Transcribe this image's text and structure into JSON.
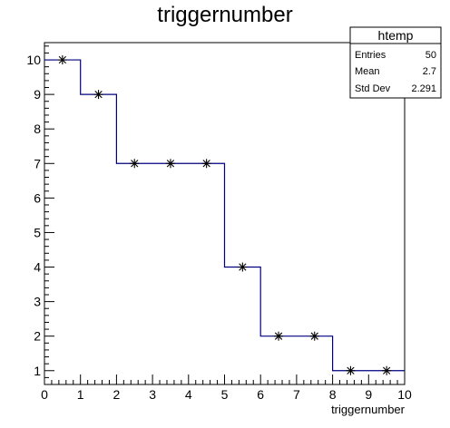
{
  "chart_data": {
    "type": "step-histogram",
    "title": "triggernumber",
    "xlabel": "triggernumber",
    "ylabel": "",
    "xlim": [
      0,
      10
    ],
    "ylim": [
      0.6,
      10.5
    ],
    "x_ticks": [
      "0",
      "1",
      "2",
      "3",
      "4",
      "5",
      "6",
      "7",
      "8",
      "9",
      "10"
    ],
    "y_ticks": [
      "1",
      "2",
      "3",
      "4",
      "5",
      "6",
      "7",
      "8",
      "9",
      "10"
    ],
    "bins": [
      {
        "low": 0,
        "high": 1,
        "value": 10
      },
      {
        "low": 1,
        "high": 2,
        "value": 9
      },
      {
        "low": 2,
        "high": 3,
        "value": 7
      },
      {
        "low": 3,
        "high": 4,
        "value": 7
      },
      {
        "low": 4,
        "high": 5,
        "value": 7
      },
      {
        "low": 5,
        "high": 6,
        "value": 4
      },
      {
        "low": 6,
        "high": 7,
        "value": 2
      },
      {
        "low": 7,
        "high": 8,
        "value": 2
      },
      {
        "low": 8,
        "high": 9,
        "value": 1
      },
      {
        "low": 9,
        "high": 10,
        "value": 1
      }
    ],
    "line_color": "#000080",
    "marker": "asterisk",
    "marker_color": "#000000",
    "grid": false
  },
  "stats_box": {
    "title": "htemp",
    "entries_label": "Entries",
    "entries_value": "50",
    "mean_label": "Mean",
    "mean_value": "2.7",
    "stddev_label": "Std Dev",
    "stddev_value": "2.291"
  }
}
